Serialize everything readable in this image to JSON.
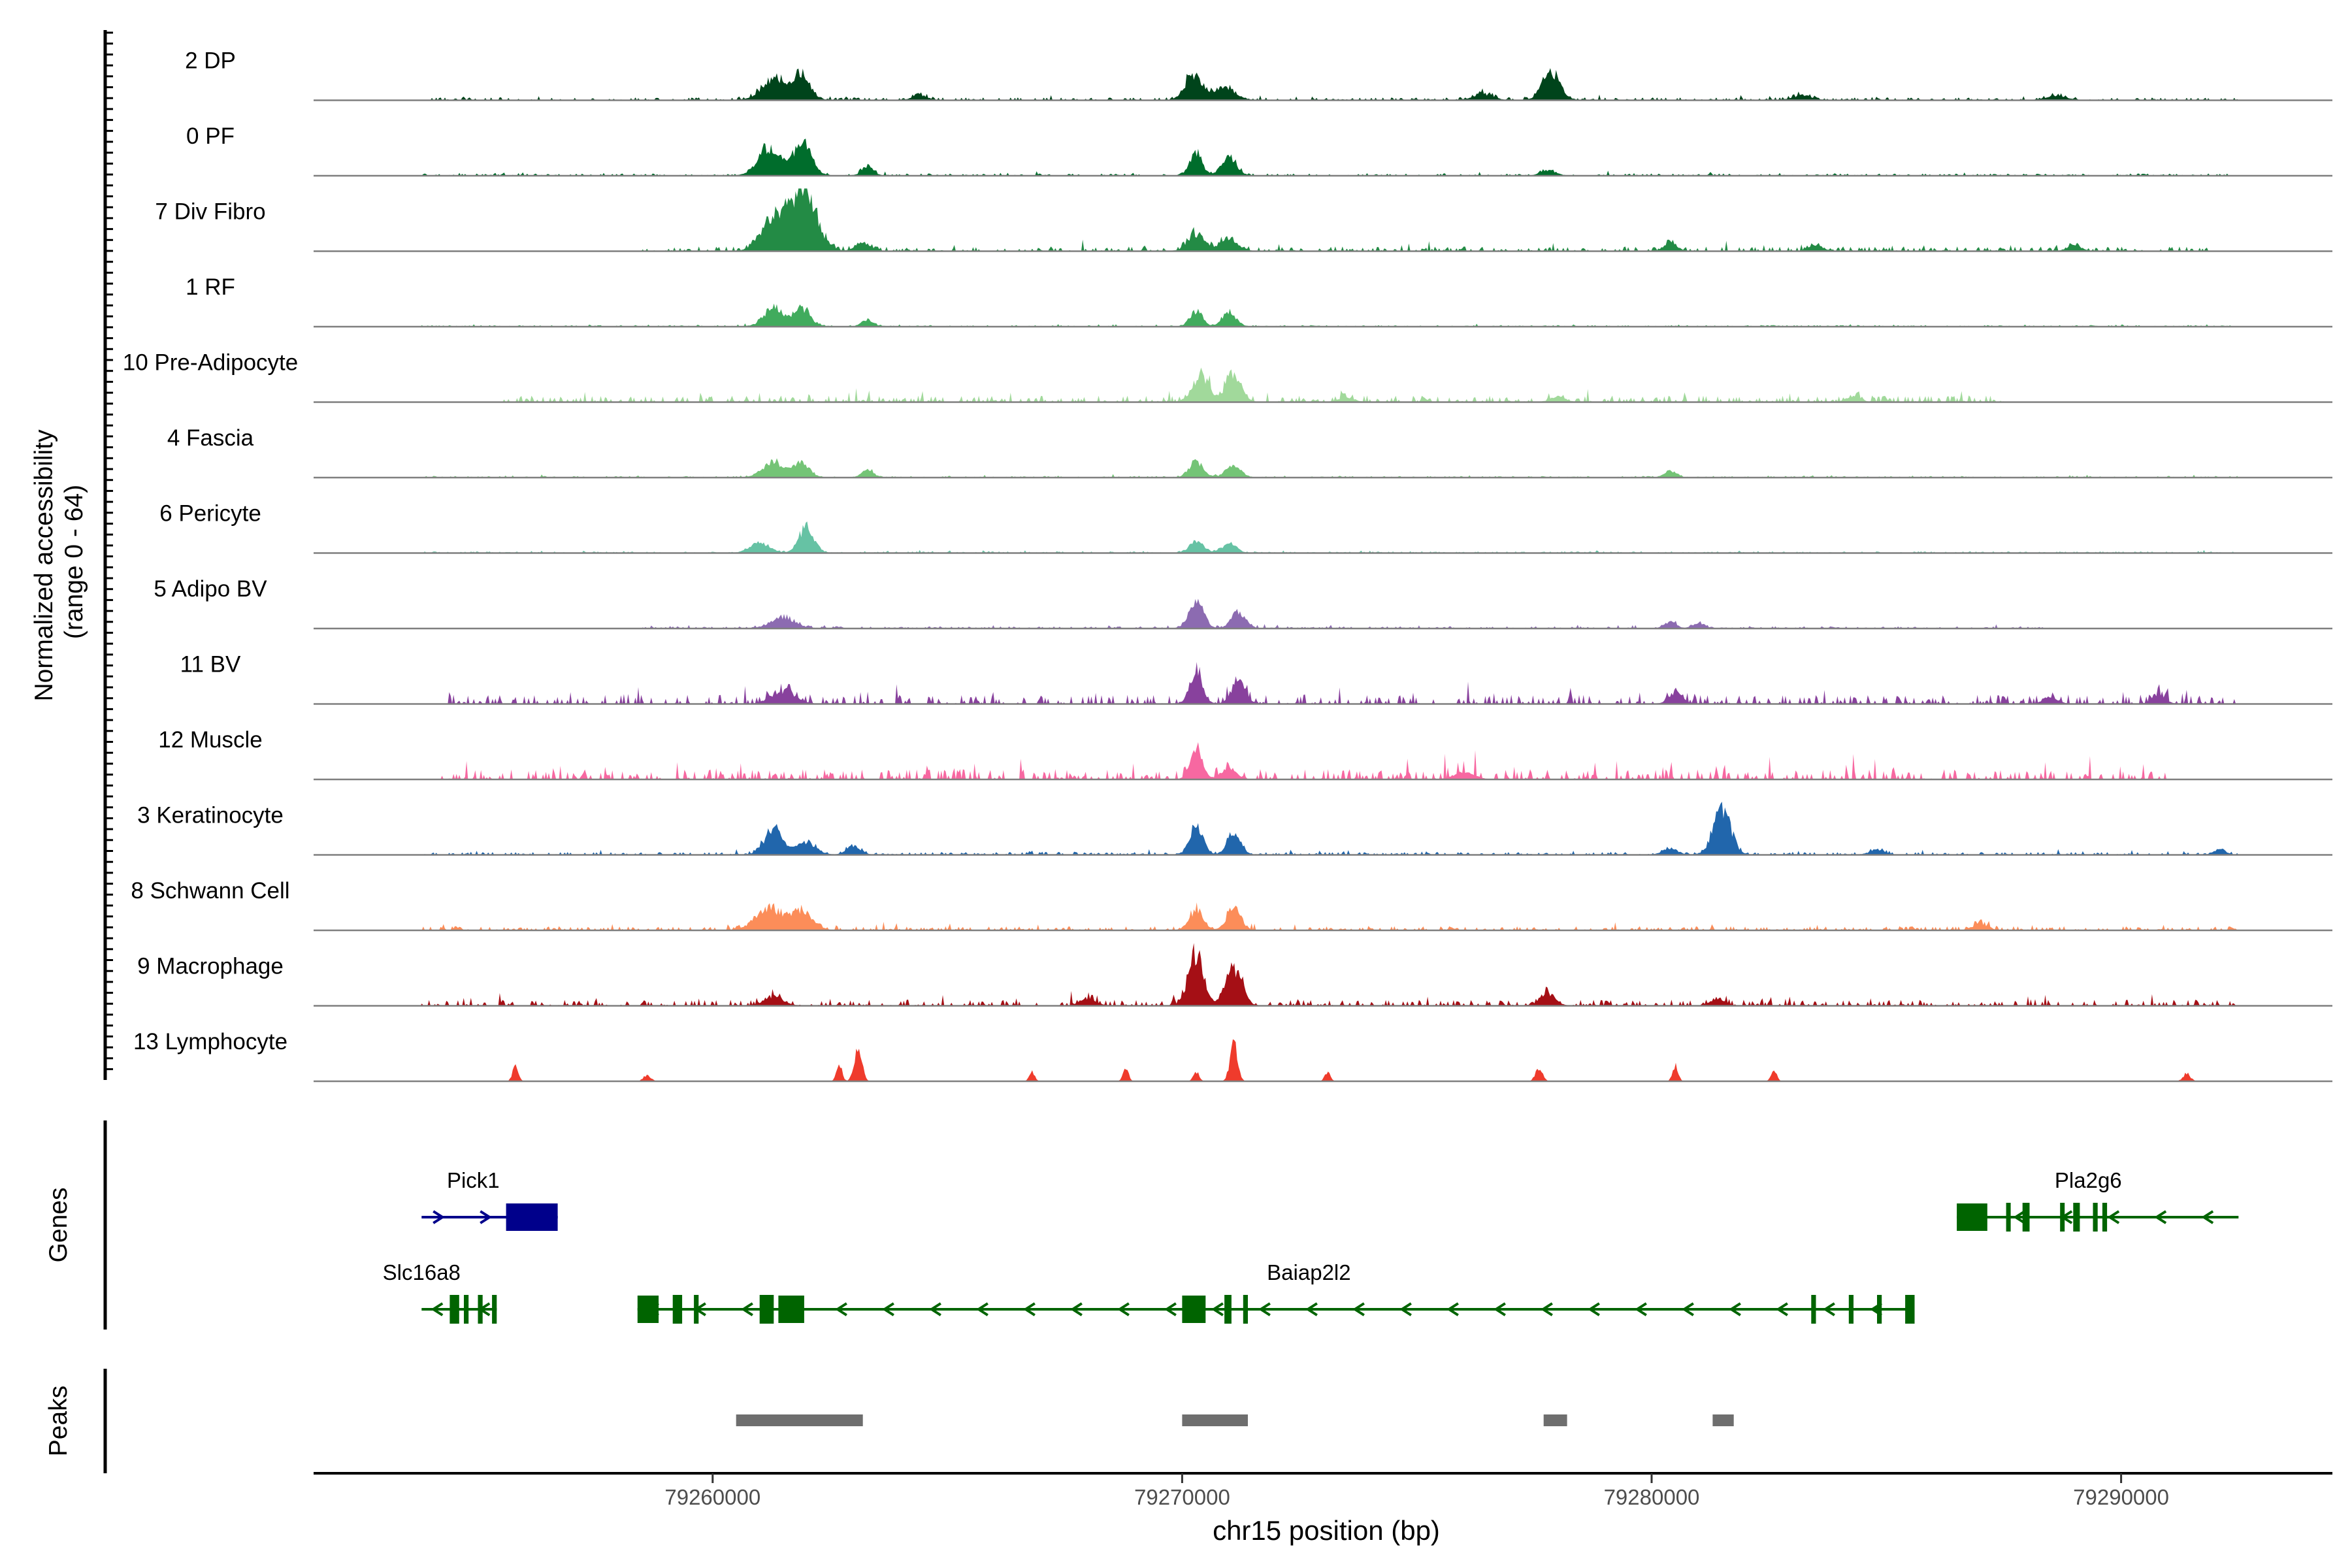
{
  "chart_data": {
    "type": "genome-track",
    "chromosome": "chr15",
    "x_range": [
      79251500,
      79294500
    ],
    "y_range": [
      0,
      64
    ],
    "ylabel_line1": "Normalized accessibility",
    "ylabel_line2": "(range 0 - 64)",
    "xlabel": "chr15 position (bp)",
    "x_ticks": [
      {
        "value": 79260000,
        "label": "79260000"
      },
      {
        "value": 79270000,
        "label": "79270000"
      },
      {
        "value": 79280000,
        "label": "79280000"
      },
      {
        "value": 79290000,
        "label": "79290000"
      }
    ],
    "series": [
      {
        "name": "2 DP",
        "color": "#00441b",
        "peaks": [
          [
            79261300,
            0.35,
            250
          ],
          [
            79261900,
            0.4,
            180
          ],
          [
            79264400,
            0.08,
            150
          ],
          [
            79270250,
            0.4,
            180
          ],
          [
            79270900,
            0.2,
            220
          ],
          [
            79277850,
            0.45,
            180
          ],
          [
            79276400,
            0.1,
            200
          ],
          [
            79283200,
            0.07,
            200
          ],
          [
            79288600,
            0.07,
            200
          ]
        ],
        "noise": 0.04,
        "noise_range": [
          79253800,
          79292500
        ]
      },
      {
        "name": "0 PF",
        "color": "#006d2c",
        "peaks": [
          [
            79261200,
            0.45,
            230
          ],
          [
            79261900,
            0.5,
            200
          ],
          [
            79263300,
            0.15,
            120
          ],
          [
            79270300,
            0.35,
            130
          ],
          [
            79271000,
            0.28,
            160
          ],
          [
            79277800,
            0.08,
            150
          ]
        ],
        "noise": 0.03,
        "noise_range": [
          79253800,
          79292500
        ]
      },
      {
        "name": "7 Div Fibro",
        "color": "#238b45",
        "peaks": [
          [
            79261300,
            0.55,
            260
          ],
          [
            79261950,
            0.98,
            260
          ],
          [
            79263200,
            0.12,
            150
          ],
          [
            79270300,
            0.25,
            180
          ],
          [
            79271000,
            0.2,
            180
          ],
          [
            79280400,
            0.15,
            130
          ],
          [
            79283500,
            0.1,
            140
          ],
          [
            79289000,
            0.08,
            150
          ]
        ],
        "noise": 0.07,
        "noise_range": [
          79258500,
          79292000
        ]
      },
      {
        "name": "1 RF",
        "color": "#41ab5d",
        "peaks": [
          [
            79261300,
            0.3,
            200
          ],
          [
            79261900,
            0.28,
            180
          ],
          [
            79263300,
            0.1,
            120
          ],
          [
            79270300,
            0.25,
            130
          ],
          [
            79271000,
            0.22,
            150
          ]
        ],
        "noise": 0.02,
        "noise_range": [
          79253800,
          79292500
        ]
      },
      {
        "name": "10 Pre-Adipocyte",
        "color": "#a1d99b",
        "peaks": [
          [
            79270400,
            0.4,
            180
          ],
          [
            79271100,
            0.45,
            160
          ],
          [
            79273500,
            0.08,
            150
          ],
          [
            79278000,
            0.08,
            150
          ],
          [
            79284300,
            0.1,
            140
          ]
        ],
        "noise": 0.1,
        "noise_range": [
          79255500,
          79287500
        ]
      },
      {
        "name": "4 Fascia",
        "color": "#74c476",
        "peaks": [
          [
            79261300,
            0.25,
            220
          ],
          [
            79261900,
            0.22,
            160
          ],
          [
            79263300,
            0.12,
            120
          ],
          [
            79270300,
            0.25,
            150
          ],
          [
            79271100,
            0.2,
            150
          ],
          [
            79280400,
            0.1,
            120
          ]
        ],
        "noise": 0.02,
        "noise_range": [
          79253800,
          79292500
        ]
      },
      {
        "name": "6 Pericyte",
        "color": "#66c2a4",
        "peaks": [
          [
            79261000,
            0.15,
            200
          ],
          [
            79262000,
            0.4,
            160
          ],
          [
            79270300,
            0.18,
            150
          ],
          [
            79271000,
            0.15,
            150
          ]
        ],
        "noise": 0.02,
        "noise_range": [
          79253800,
          79292500
        ]
      },
      {
        "name": "5 Adipo BV",
        "color": "#8c6bb1",
        "peaks": [
          [
            79261500,
            0.18,
            250
          ],
          [
            79270300,
            0.45,
            150
          ],
          [
            79271200,
            0.25,
            150
          ],
          [
            79280400,
            0.1,
            120
          ],
          [
            79281000,
            0.08,
            120
          ]
        ],
        "noise": 0.03,
        "noise_range": [
          79258500,
          79288500
        ]
      },
      {
        "name": "11 BV",
        "color": "#88419d",
        "peaks": [
          [
            79261500,
            0.2,
            250
          ],
          [
            79270300,
            0.55,
            130
          ],
          [
            79271200,
            0.35,
            150
          ],
          [
            79280500,
            0.18,
            140
          ],
          [
            79288500,
            0.12,
            140
          ],
          [
            79290800,
            0.12,
            140
          ]
        ],
        "noise": 0.14,
        "noise_range": [
          79254000,
          79292500
        ]
      },
      {
        "name": "12 Muscle",
        "color": "#f768a1",
        "peaks": [
          [
            79270300,
            0.45,
            130
          ],
          [
            79271000,
            0.2,
            150
          ],
          [
            79276000,
            0.12,
            200
          ]
        ],
        "noise": 0.16,
        "noise_range": [
          79253800,
          79291000
        ]
      },
      {
        "name": "3 Keratinocyte",
        "color": "#2166ac",
        "peaks": [
          [
            79261300,
            0.4,
            200
          ],
          [
            79262000,
            0.2,
            200
          ],
          [
            79263000,
            0.15,
            140
          ],
          [
            79270300,
            0.45,
            140
          ],
          [
            79271100,
            0.35,
            140
          ],
          [
            79281500,
            0.75,
            180
          ],
          [
            79280400,
            0.1,
            150
          ],
          [
            79284800,
            0.08,
            150
          ],
          [
            79292100,
            0.08,
            120
          ]
        ],
        "noise": 0.04,
        "noise_range": [
          79253800,
          79292500
        ]
      },
      {
        "name": "8 Schwann Cell",
        "color": "#fc8d59",
        "peaks": [
          [
            79261200,
            0.35,
            280
          ],
          [
            79261900,
            0.3,
            220
          ],
          [
            79270300,
            0.3,
            150
          ],
          [
            79271100,
            0.35,
            150
          ],
          [
            79287000,
            0.1,
            150
          ]
        ],
        "noise": 0.06,
        "noise_range": [
          79253800,
          79292500
        ]
      },
      {
        "name": "9 Macrophage",
        "color": "#a50f15",
        "peaks": [
          [
            79270300,
            0.85,
            160
          ],
          [
            79271100,
            0.6,
            170
          ],
          [
            79277800,
            0.2,
            150
          ],
          [
            79281400,
            0.12,
            140
          ],
          [
            79268000,
            0.12,
            160
          ],
          [
            79261300,
            0.15,
            200
          ]
        ],
        "noise": 0.09,
        "noise_range": [
          79253800,
          79292500
        ]
      },
      {
        "name": "13 Lymphocyte",
        "color": "#ef3b2c",
        "peaks": [
          [
            79255800,
            0.25,
            60
          ],
          [
            79263100,
            0.55,
            80
          ],
          [
            79262700,
            0.25,
            60
          ],
          [
            79271100,
            0.6,
            80
          ],
          [
            79270300,
            0.15,
            60
          ],
          [
            79258600,
            0.1,
            80
          ],
          [
            79266800,
            0.15,
            60
          ],
          [
            79268800,
            0.2,
            60
          ],
          [
            79273100,
            0.15,
            60
          ],
          [
            79277600,
            0.2,
            80
          ],
          [
            79280500,
            0.25,
            60
          ],
          [
            79282600,
            0.18,
            60
          ],
          [
            79291400,
            0.12,
            80
          ]
        ],
        "noise": 0.0,
        "noise_range": [
          79253800,
          79292500
        ]
      }
    ],
    "genes_label": "Genes",
    "genes": [
      {
        "name": "Pick1",
        "strand": "+",
        "color": "#00008b",
        "row": 0,
        "start": 79253800,
        "end": 79256700,
        "label_pos": 79254900,
        "exons": [
          [
            79255600,
            79256700
          ]
        ]
      },
      {
        "name": "Pla2g6",
        "strand": "-",
        "color": "#006400",
        "row": 0,
        "start": 79286500,
        "end": 79292500,
        "label_pos": 79289300,
        "exons": [
          [
            79286500,
            79287150
          ],
          [
            79287550,
            79287620
          ],
          [
            79287900,
            79288050
          ],
          [
            79288700,
            79288780
          ],
          [
            79288980,
            79289120
          ],
          [
            79289400,
            79289500
          ],
          [
            79289600,
            79289700
          ]
        ]
      },
      {
        "name": "Slc16a8",
        "strand": "-",
        "color": "#006400",
        "row": 1,
        "start": 79253800,
        "end": 79255400,
        "label_pos": 79253800,
        "exons": [
          [
            79254400,
            79254600
          ],
          [
            79254700,
            79254800
          ],
          [
            79255000,
            79255100
          ],
          [
            79255300,
            79255400
          ]
        ]
      },
      {
        "name": "Baiap2l2",
        "strand": "-",
        "color": "#006400",
        "row": 1,
        "start": 79258400,
        "end": 79285600,
        "label_pos": 79272700,
        "exons": [
          [
            79258400,
            79258850
          ],
          [
            79259150,
            79259350
          ],
          [
            79259600,
            79259700
          ],
          [
            79261000,
            79261300
          ],
          [
            79261400,
            79261950
          ],
          [
            79270000,
            79270500
          ],
          [
            79270900,
            79271050
          ],
          [
            79271300,
            79271400
          ],
          [
            79283400,
            79283500
          ],
          [
            79284200,
            79284300
          ],
          [
            79284800,
            79284900
          ],
          [
            79285400,
            79285600
          ]
        ]
      }
    ],
    "peaks_label": "Peaks",
    "peak_regions": [
      [
        79260500,
        79263200
      ],
      [
        79270000,
        79271400
      ],
      [
        79277700,
        79278200
      ],
      [
        79281300,
        79281750
      ]
    ]
  }
}
